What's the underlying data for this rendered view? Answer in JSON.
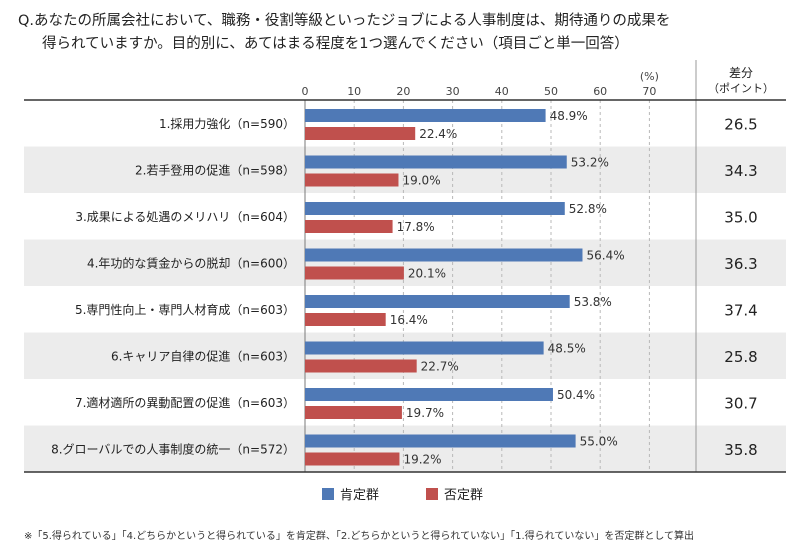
{
  "chart_data": {
    "type": "bar",
    "title_line1": "Q.あなたの所属会社において、職務・役割等級といったジョブによる人事制度は、期待通りの成果を",
    "title_line2": "得られていますか。目的別に、あてはまる程度を1つ選んでください（項目ごと単一回答）",
    "categories": [
      "1.採用力強化（n=590）",
      "2.若手登用の促進（n=598）",
      "3.成果による処遇のメリハリ（n=604）",
      "4.年功的な賃金からの脱却（n=600）",
      "5.専門性向上・専門人材育成（n=603）",
      "6.キャリア自律の促進（n=603）",
      "7.適材適所の異動配置の促進（n=603）",
      "8.グローバルでの人事制度の統一（n=572）"
    ],
    "series": [
      {
        "name": "肯定群",
        "color": "#4f79b6",
        "values": [
          48.9,
          53.2,
          52.8,
          56.4,
          53.8,
          48.5,
          50.4,
          55.0
        ],
        "labels": [
          "48.9%",
          "53.2%",
          "52.8%",
          "56.4%",
          "53.8%",
          "48.5%",
          "50.4%",
          "55.0%"
        ]
      },
      {
        "name": "否定群",
        "color": "#c0504d",
        "values": [
          22.4,
          19.0,
          17.8,
          20.1,
          16.4,
          22.7,
          19.7,
          19.2
        ],
        "labels": [
          "22.4%",
          "19.0%",
          "17.8%",
          "20.1%",
          "16.4%",
          "22.7%",
          "19.7%",
          "19.2%"
        ]
      }
    ],
    "diff_header": [
      "差分",
      "（ポイント）"
    ],
    "diff_values": [
      "26.5",
      "34.3",
      "35.0",
      "36.3",
      "37.4",
      "25.8",
      "30.7",
      "35.8"
    ],
    "xaxis_ticks": [
      "0",
      "10",
      "20",
      "30",
      "40",
      "50",
      "60",
      "70"
    ],
    "xaxis_unit": "(%)",
    "xlim": [
      0,
      80
    ],
    "grid": "dashed-vertical",
    "legend_position": "bottom-center",
    "row_band_color": "#ececec"
  },
  "footnote": "※「5.得られている」「4.どちらかというと得られている」を肯定群、「2.どちらかというと得られていない」「1.得られていない」を否定群として算出"
}
